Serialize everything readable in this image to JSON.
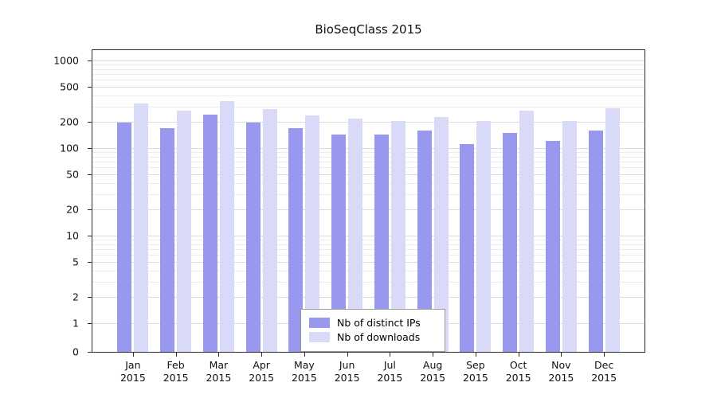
{
  "chart_data": {
    "type": "bar",
    "title": "BioSeqClass 2015",
    "categories": [
      "Jan",
      "Feb",
      "Mar",
      "Apr",
      "May",
      "Jun",
      "Jul",
      "Aug",
      "Sep",
      "Oct",
      "Nov",
      "Dec"
    ],
    "year_label": "2015",
    "series": [
      {
        "name": "Nb of distinct IPs",
        "color": "#9898ee",
        "values": [
          195,
          170,
          240,
          195,
          170,
          142,
          142,
          160,
          110,
          150,
          120,
          160
        ]
      },
      {
        "name": "Nb of downloads",
        "color": "#d9d9f8",
        "values": [
          320,
          270,
          345,
          280,
          235,
          215,
          205,
          225,
          205,
          265,
          205,
          285
        ]
      }
    ],
    "y_ticks": [
      0,
      1,
      2,
      5,
      10,
      20,
      50,
      100,
      200,
      500,
      1000
    ],
    "y_scale": "log",
    "ylim": [
      0,
      1000
    ],
    "grid": true,
    "legend_position": "bottom-center-inside"
  }
}
